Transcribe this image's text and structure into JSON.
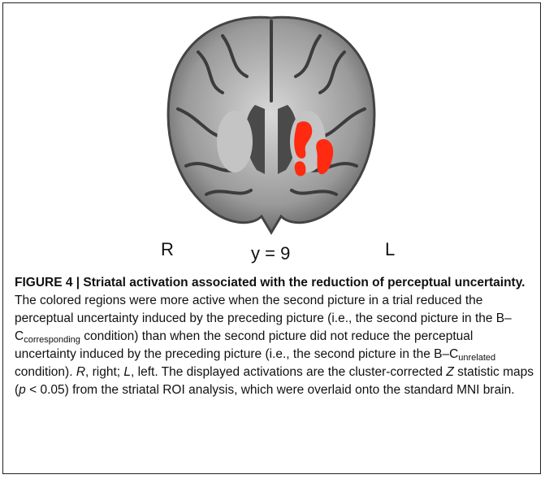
{
  "figure": {
    "labels": {
      "right_hemisphere": "R",
      "slice": "y = 9",
      "left_hemisphere": "L"
    },
    "caption": [
      "FIGURE 4 | Striatal activation associated with the reduction of perceptual uncertainty.",
      " The colored regions were more active when the second picture in a trial reduced the perceptual uncertainty induced by the preceding picture (i.e., the second picture in the B–C",
      "corresponding",
      " condition) than when the second picture did not reduce the perceptual uncertainty induced by the preceding picture (i.e., the second picture in the B–C",
      "unrelated",
      " condition). ",
      "R",
      ", right; ",
      "L",
      ", left. The displayed activations are the cluster-corrected ",
      "Z",
      " statistic maps (",
      "p",
      " < 0.05) from the striatal ROI analysis, which were overlaid onto the standard MNI brain."
    ]
  }
}
